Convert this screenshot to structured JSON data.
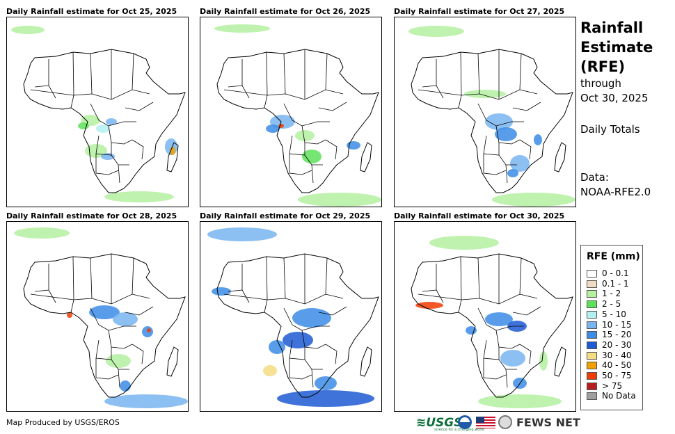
{
  "panels": [
    {
      "title": "Daily Rainfall estimate for Oct 25, 2025"
    },
    {
      "title": "Daily Rainfall estimate for Oct 26, 2025"
    },
    {
      "title": "Daily Rainfall estimate for Oct 27, 2025"
    },
    {
      "title": "Daily Rainfall estimate for Oct 28, 2025"
    },
    {
      "title": "Daily Rainfall estimate for Oct 29, 2025"
    },
    {
      "title": "Daily Rainfall estimate for Oct 30, 2025"
    }
  ],
  "side": {
    "title_line1": "Rainfall",
    "title_line2": "Estimate",
    "title_line3": "(RFE)",
    "through": "through",
    "date": "Oct 30, 2025",
    "totals": "Daily Totals",
    "data_label": "Data:",
    "data_source": "NOAA-RFE2.0"
  },
  "legend": {
    "title": "RFE (mm)",
    "items": [
      {
        "label": "0 - 0.1",
        "color": "#ffffff"
      },
      {
        "label": "0.1 - 1",
        "color": "#f0dcc0"
      },
      {
        "label": "1 - 2",
        "color": "#b4f0a0"
      },
      {
        "label": "2 - 5",
        "color": "#5ee05a"
      },
      {
        "label": "5 - 10",
        "color": "#b4f0f0"
      },
      {
        "label": "10 - 15",
        "color": "#78b4f0"
      },
      {
        "label": "15 - 20",
        "color": "#3c8ce6"
      },
      {
        "label": "20 - 30",
        "color": "#1e5ad2"
      },
      {
        "label": "30 - 40",
        "color": "#f5dc82"
      },
      {
        "label": "40 - 50",
        "color": "#f0a000"
      },
      {
        "label": "50 - 75",
        "color": "#f03c00"
      },
      {
        "label": "> 75",
        "color": "#b41e1e"
      },
      {
        "label": "No Data",
        "color": "#a0a0a0"
      }
    ]
  },
  "footer": {
    "credit": "Map Produced by USGS/EROS",
    "usgs": "USGS",
    "usgs_tagline": "science for a changing world",
    "fews": "FEWS NET"
  }
}
